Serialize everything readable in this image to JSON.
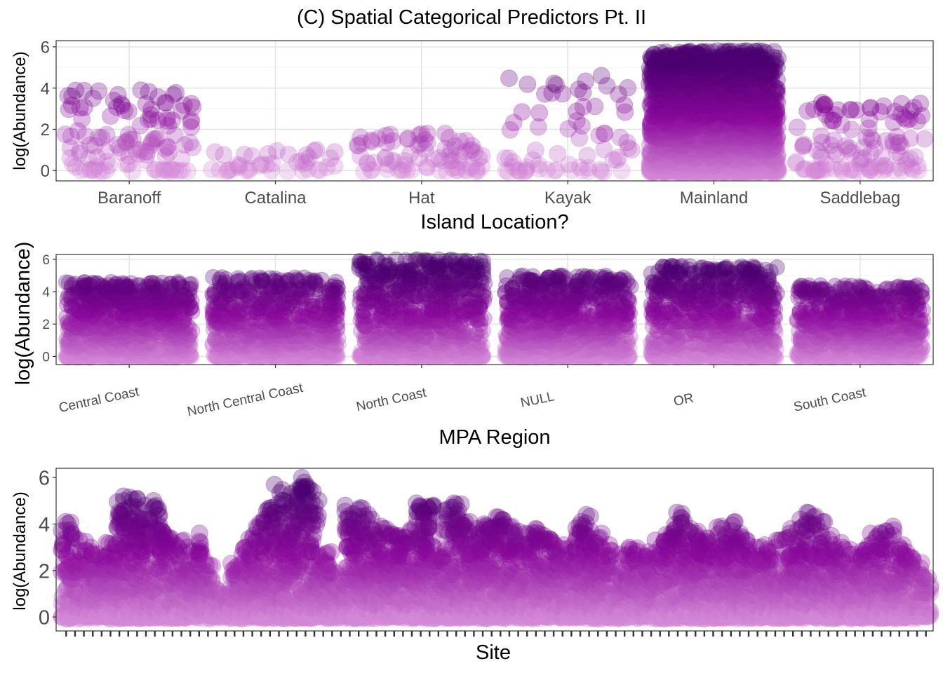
{
  "figure": {
    "title": "(C) Spatial Categorical Predictors Pt. II",
    "colors": {
      "point_low": "#d58ad8",
      "point_mid": "#8b0a9c",
      "point_high": "#4b0070",
      "grid_major": "#e5e5e5",
      "grid_minor": "#f2f2f2",
      "panel_border": "#333333",
      "background": "#ffffff"
    },
    "point_alpha": 0.3
  },
  "chart_data": [
    {
      "type": "scatter",
      "variant": "jitter",
      "xlabel": "Island Location?",
      "ylabel": "log(Abundance)",
      "ylim": [
        -0.5,
        6.3
      ],
      "yticks": [
        0,
        2,
        4,
        6
      ],
      "grid": true,
      "categories": [
        "Baranoff",
        "Catalina",
        "Hat",
        "Kayak",
        "Mainland",
        "Saddlebag"
      ],
      "series": [
        {
          "category": "Baranoff",
          "min": -0.1,
          "max": 3.9,
          "approx_points": 120
        },
        {
          "category": "Catalina",
          "min": -0.1,
          "max": 1.0,
          "approx_points": 40
        },
        {
          "category": "Hat",
          "min": -0.1,
          "max": 1.8,
          "approx_points": 80
        },
        {
          "category": "Kayak",
          "min": -0.1,
          "max": 4.6,
          "approx_points": 70
        },
        {
          "category": "Mainland",
          "min": -0.1,
          "max": 5.8,
          "approx_points": 2000
        },
        {
          "category": "Saddlebag",
          "min": -0.1,
          "max": 3.3,
          "approx_points": 120
        }
      ]
    },
    {
      "type": "scatter",
      "variant": "jitter",
      "xlabel": "MPA Region",
      "ylabel": "log(Abundance)",
      "ylim": [
        -0.5,
        6.3
      ],
      "yticks": [
        0,
        2,
        4,
        6
      ],
      "grid": true,
      "tick_label_angle": -12,
      "categories": [
        "Central Coast",
        "North Central Coast",
        "North Coast",
        "NULL",
        "OR",
        "South Coast"
      ],
      "series": [
        {
          "category": "Central Coast",
          "min": -0.1,
          "max": 4.6,
          "approx_points": 900
        },
        {
          "category": "North Central Coast",
          "min": -0.1,
          "max": 4.9,
          "approx_points": 800
        },
        {
          "category": "North Coast",
          "min": -0.1,
          "max": 6.0,
          "approx_points": 900
        },
        {
          "category": "NULL",
          "min": -0.1,
          "max": 5.0,
          "approx_points": 900
        },
        {
          "category": "OR",
          "min": -0.1,
          "max": 5.6,
          "approx_points": 800
        },
        {
          "category": "South Coast",
          "min": -0.1,
          "max": 4.4,
          "approx_points": 800
        }
      ]
    },
    {
      "type": "scatter",
      "variant": "jitter",
      "xlabel": "Site",
      "ylabel": "log(Abundance)",
      "ylim": [
        -0.6,
        6.4
      ],
      "yticks": [
        0,
        2,
        4,
        6
      ],
      "grid": false,
      "n_sites": 98,
      "site_maxima": [
        4.1,
        3.6,
        3.3,
        3.0,
        2.7,
        3.2,
        5.0,
        5.2,
        5.1,
        4.8,
        5.0,
        3.7,
        3.4,
        3.3,
        3.0,
        3.6,
        2.4,
        1.2,
        1.0,
        2.3,
        3.0,
        3.5,
        4.2,
        4.7,
        5.7,
        5.3,
        5.6,
        6.0,
        5.4,
        2.7,
        2.8,
        1.5,
        4.8,
        4.7,
        4.4,
        3.9,
        3.8,
        3.6,
        3.5,
        3.9,
        4.9,
        4.8,
        2.6,
        4.7,
        4.9,
        4.1,
        3.8,
        4.0,
        3.9,
        4.3,
        3.9,
        3.7,
        3.6,
        3.8,
        3.5,
        3.3,
        3.1,
        3.0,
        4.1,
        4.4,
        3.6,
        3.1,
        2.1,
        2.7,
        3.0,
        2.6,
        2.8,
        3.3,
        3.6,
        4.5,
        4.1,
        3.8,
        3.4,
        3.2,
        3.9,
        4.1,
        3.6,
        3.3,
        3.0,
        3.1,
        3.3,
        3.4,
        3.8,
        4.2,
        4.5,
        4.1,
        3.5,
        3.2,
        3.0,
        2.7,
        2.9,
        3.6,
        3.7,
        3.9,
        3.1,
        2.8,
        2.5,
        1.7
      ]
    }
  ]
}
